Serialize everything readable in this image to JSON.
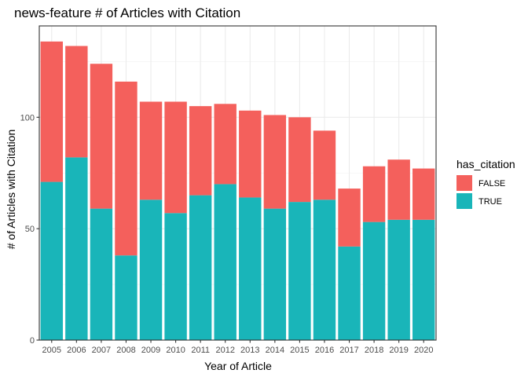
{
  "chart_data": {
    "type": "bar",
    "stacked": true,
    "title": "news-feature # of Articles with Citation",
    "xlabel": "Year of Article",
    "ylabel": "# of Articles with Citation",
    "categories": [
      "2005",
      "2006",
      "2007",
      "2008",
      "2009",
      "2010",
      "2011",
      "2012",
      "2013",
      "2014",
      "2015",
      "2016",
      "2017",
      "2018",
      "2019",
      "2020"
    ],
    "series": [
      {
        "name": "TRUE",
        "color": "#19b5b9",
        "values": [
          71,
          82,
          59,
          38,
          63,
          57,
          65,
          70,
          64,
          59,
          62,
          63,
          42,
          53,
          54,
          54
        ]
      },
      {
        "name": "FALSE",
        "color": "#f4605c",
        "values": [
          63,
          50,
          65,
          78,
          44,
          50,
          40,
          36,
          39,
          42,
          38,
          31,
          26,
          25,
          27,
          23
        ]
      }
    ],
    "ylim": [
      0,
      141
    ],
    "yticks": [
      0,
      50,
      100
    ],
    "grid": true,
    "legend": {
      "title": "has_citation",
      "position": "right",
      "entries": [
        {
          "label": "FALSE",
          "color": "#f4605c"
        },
        {
          "label": "TRUE",
          "color": "#19b5b9"
        }
      ]
    }
  }
}
